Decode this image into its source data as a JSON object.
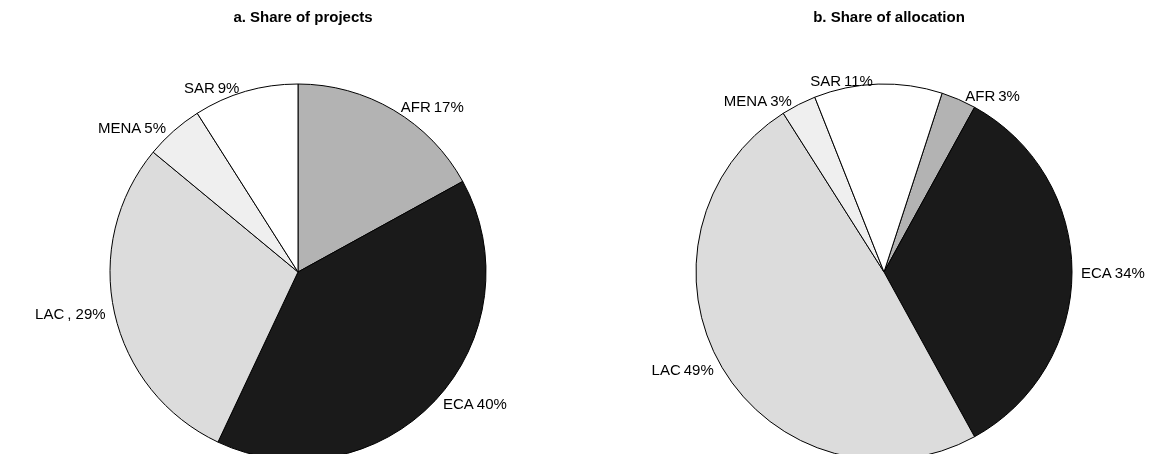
{
  "chart_data": [
    {
      "type": "pie",
      "title": "a. Share of projects",
      "categories": [
        "AFR",
        "ECA",
        "LAC",
        "MENA",
        "SAR"
      ],
      "values": [
        17,
        40,
        29,
        5,
        9
      ],
      "colors": [
        "#b3b3b3",
        "#1a1a1a",
        "#dcdcdc",
        "#efefef",
        "#ffffff"
      ],
      "value_labels": [
        "17%",
        "40%",
        ", 29%",
        "5%",
        "9%"
      ]
    },
    {
      "type": "pie",
      "title": "b. Share of allocation",
      "categories": [
        "AFR",
        "ECA",
        "LAC",
        "MENA",
        "SAR"
      ],
      "values": [
        3,
        34,
        49,
        3,
        11
      ],
      "colors": [
        "#b3b3b3",
        "#1a1a1a",
        "#dcdcdc",
        "#efefef",
        "#ffffff"
      ],
      "value_labels": [
        "3%",
        "34%",
        "49%",
        "3%",
        "11%"
      ]
    }
  ]
}
